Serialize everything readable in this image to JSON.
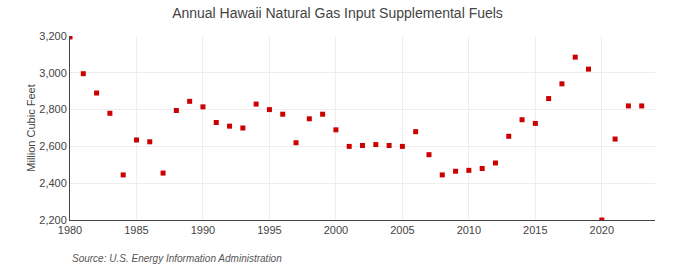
{
  "chart_data": {
    "type": "scatter",
    "title": "Annual Hawaii Natural Gas Input Supplemental Fuels",
    "y_label": "Million Cubic Feet",
    "annotations": [
      "Source: U.S. Energy Information Administration"
    ],
    "x": [
      1980,
      1981,
      1982,
      1983,
      1984,
      1985,
      1986,
      1987,
      1988,
      1989,
      1990,
      1991,
      1992,
      1993,
      1994,
      1995,
      1996,
      1997,
      1998,
      1999,
      2000,
      2001,
      2002,
      2003,
      2004,
      2005,
      2006,
      2007,
      2008,
      2009,
      2010,
      2011,
      2012,
      2013,
      2014,
      2015,
      2016,
      2017,
      2018,
      2019,
      2020,
      2021,
      2022,
      2023
    ],
    "values": [
      3195,
      2995,
      2890,
      2780,
      2445,
      2635,
      2625,
      2455,
      2795,
      2845,
      2815,
      2730,
      2710,
      2700,
      2830,
      2800,
      2775,
      2620,
      2750,
      2775,
      2690,
      2600,
      2605,
      2610,
      2605,
      2600,
      2680,
      2555,
      2445,
      2465,
      2470,
      2480,
      2510,
      2655,
      2745,
      2725,
      2860,
      2940,
      3085,
      3020,
      2200,
      2640,
      2820,
      2820
    ],
    "color": "#cc0000",
    "marker": "square",
    "xlim": [
      1980,
      2024
    ],
    "ylim": [
      2200,
      3200
    ],
    "xticks": [
      1980,
      1985,
      1990,
      1995,
      2000,
      2005,
      2010,
      2015,
      2020
    ],
    "yticks": [
      {
        "value": 2200,
        "label": "2,200"
      },
      {
        "value": 2400,
        "label": "2,400"
      },
      {
        "value": 2600,
        "label": "2,600"
      },
      {
        "value": 2800,
        "label": "2,800"
      },
      {
        "value": 3000,
        "label": "3,000"
      },
      {
        "value": 3200,
        "label": "3,200"
      }
    ],
    "grid": true
  }
}
